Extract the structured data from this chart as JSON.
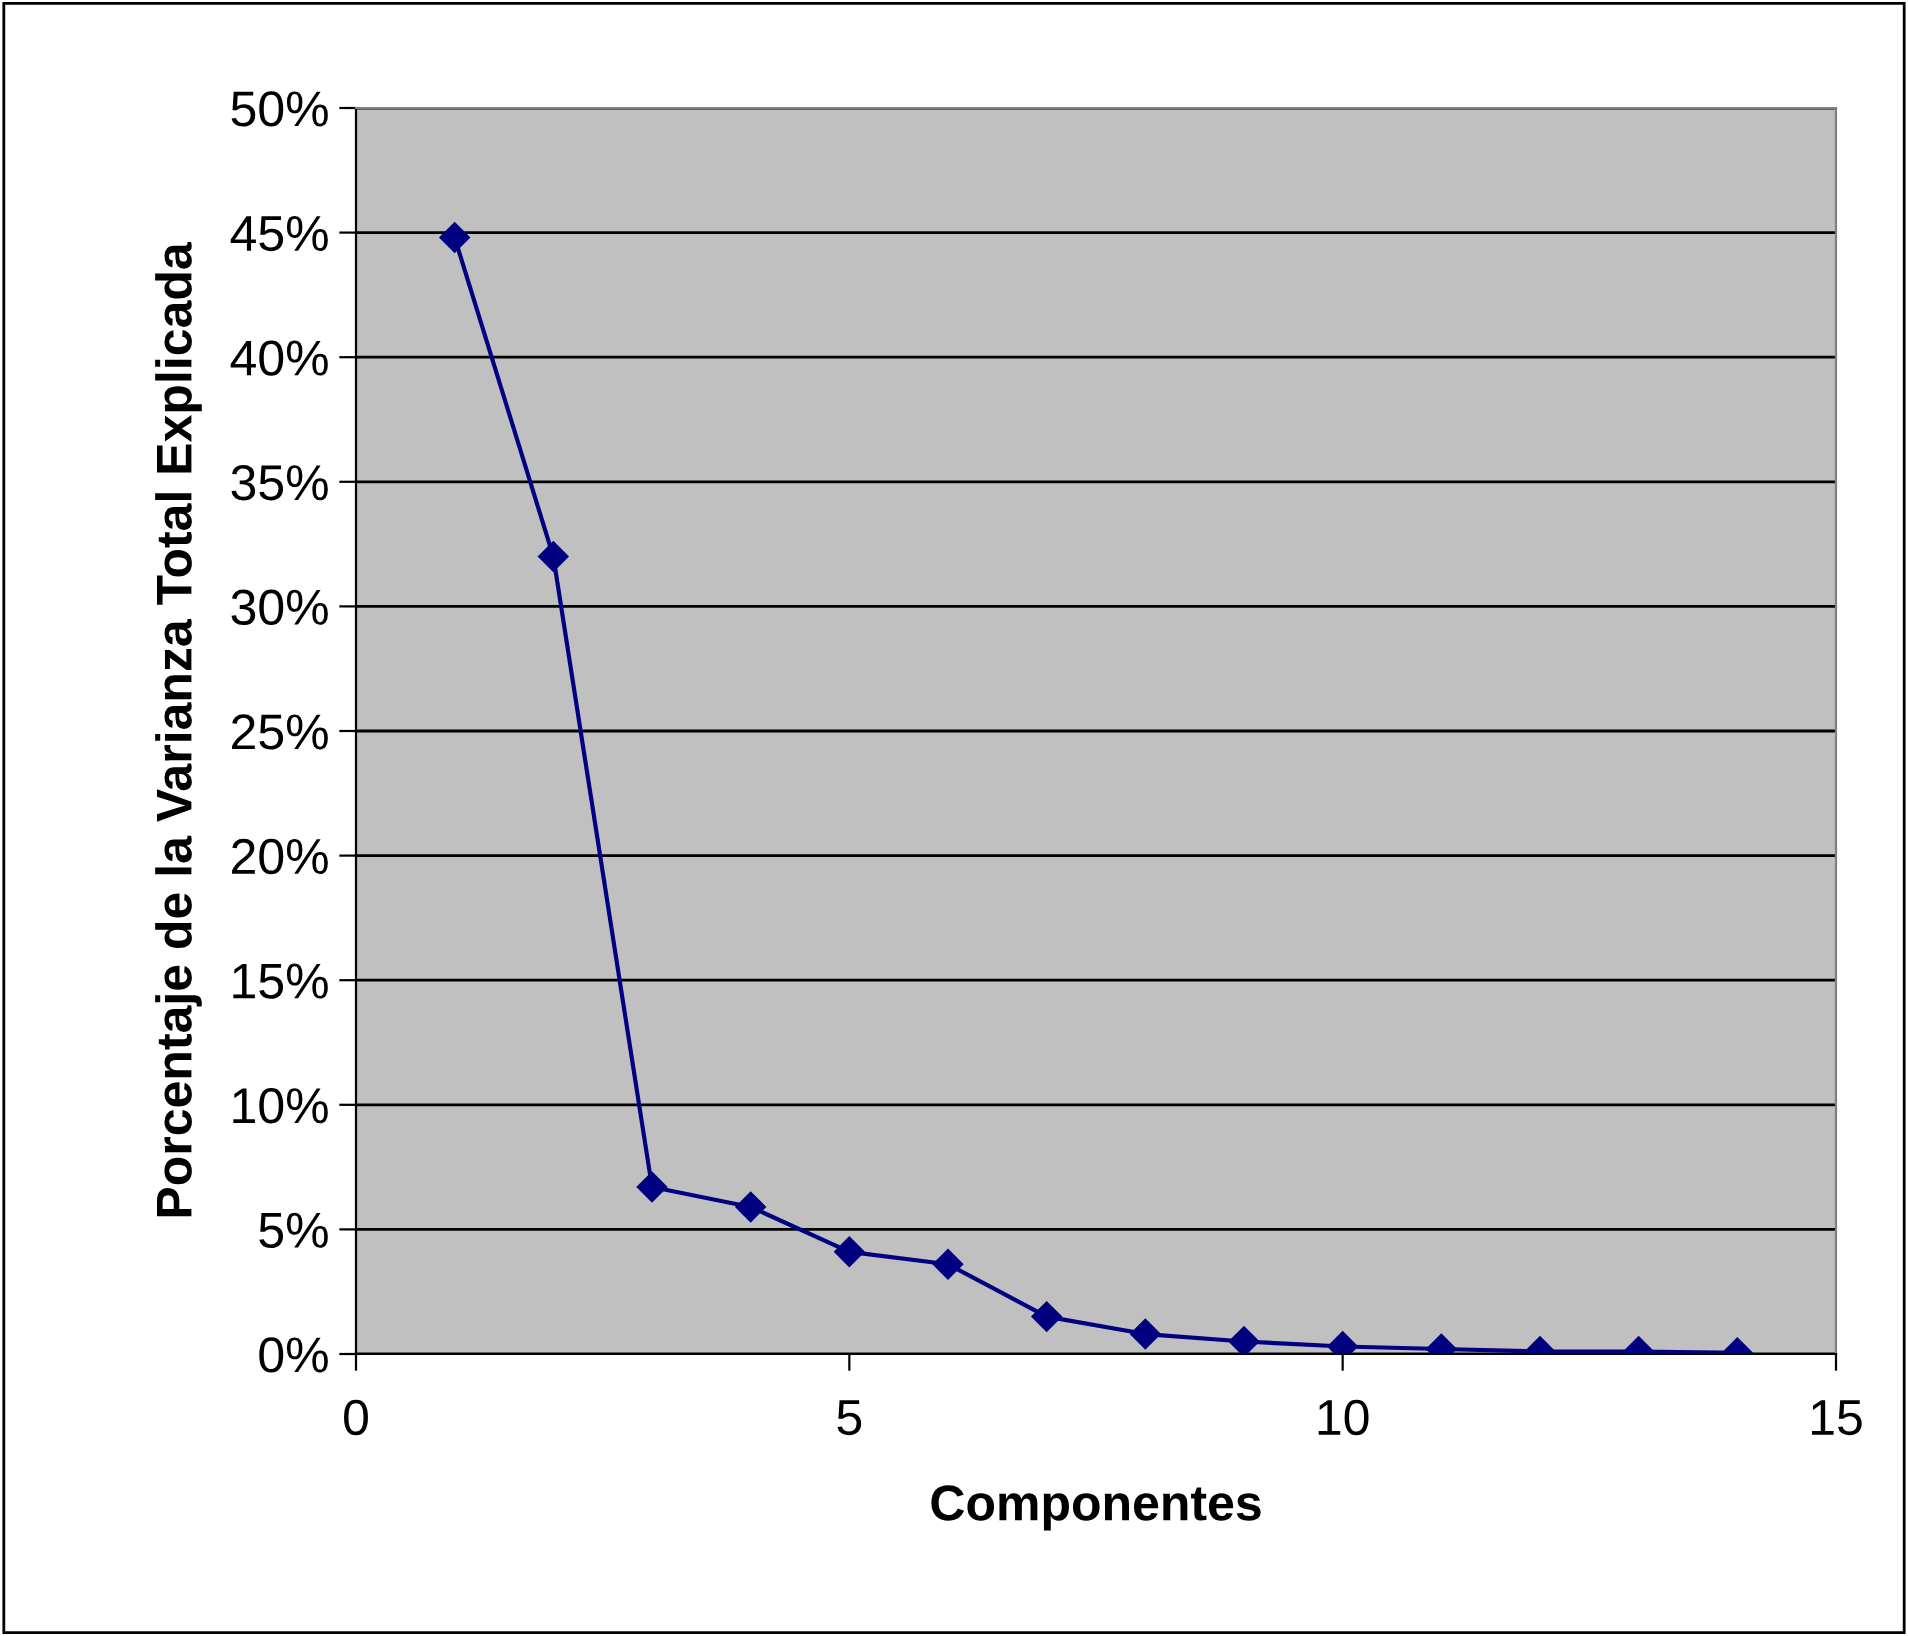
{
  "chart_data": {
    "type": "line",
    "xlabel": "Componentes",
    "ylabel": "Porcentaje de la Varianza Total Explicada",
    "x": [
      1,
      2,
      3,
      4,
      5,
      6,
      7,
      8,
      9,
      10,
      11,
      12,
      13,
      14
    ],
    "series": [
      {
        "color": "#000080",
        "values": [
          44.8,
          32.0,
          6.7,
          5.9,
          4.1,
          3.6,
          1.5,
          0.8,
          0.5,
          0.3,
          0.2,
          0.1,
          0.1,
          0.05
        ]
      }
    ],
    "xlim": [
      0,
      15
    ],
    "xticks": [
      0,
      5,
      10,
      15
    ],
    "ylim": [
      0,
      50
    ],
    "yticks": [
      {
        "value": 0,
        "label": "0%"
      },
      {
        "value": 5,
        "label": "5%"
      },
      {
        "value": 10,
        "label": "10%"
      },
      {
        "value": 15,
        "label": "15%"
      },
      {
        "value": 20,
        "label": "20%"
      },
      {
        "value": 25,
        "label": "25%"
      },
      {
        "value": 30,
        "label": "30%"
      },
      {
        "value": 35,
        "label": "35%"
      },
      {
        "value": 40,
        "label": "40%"
      },
      {
        "value": 45,
        "label": "45%"
      },
      {
        "value": 50,
        "label": "50%"
      }
    ],
    "grid": "y",
    "marker": "diamond",
    "line_style": "solid"
  }
}
